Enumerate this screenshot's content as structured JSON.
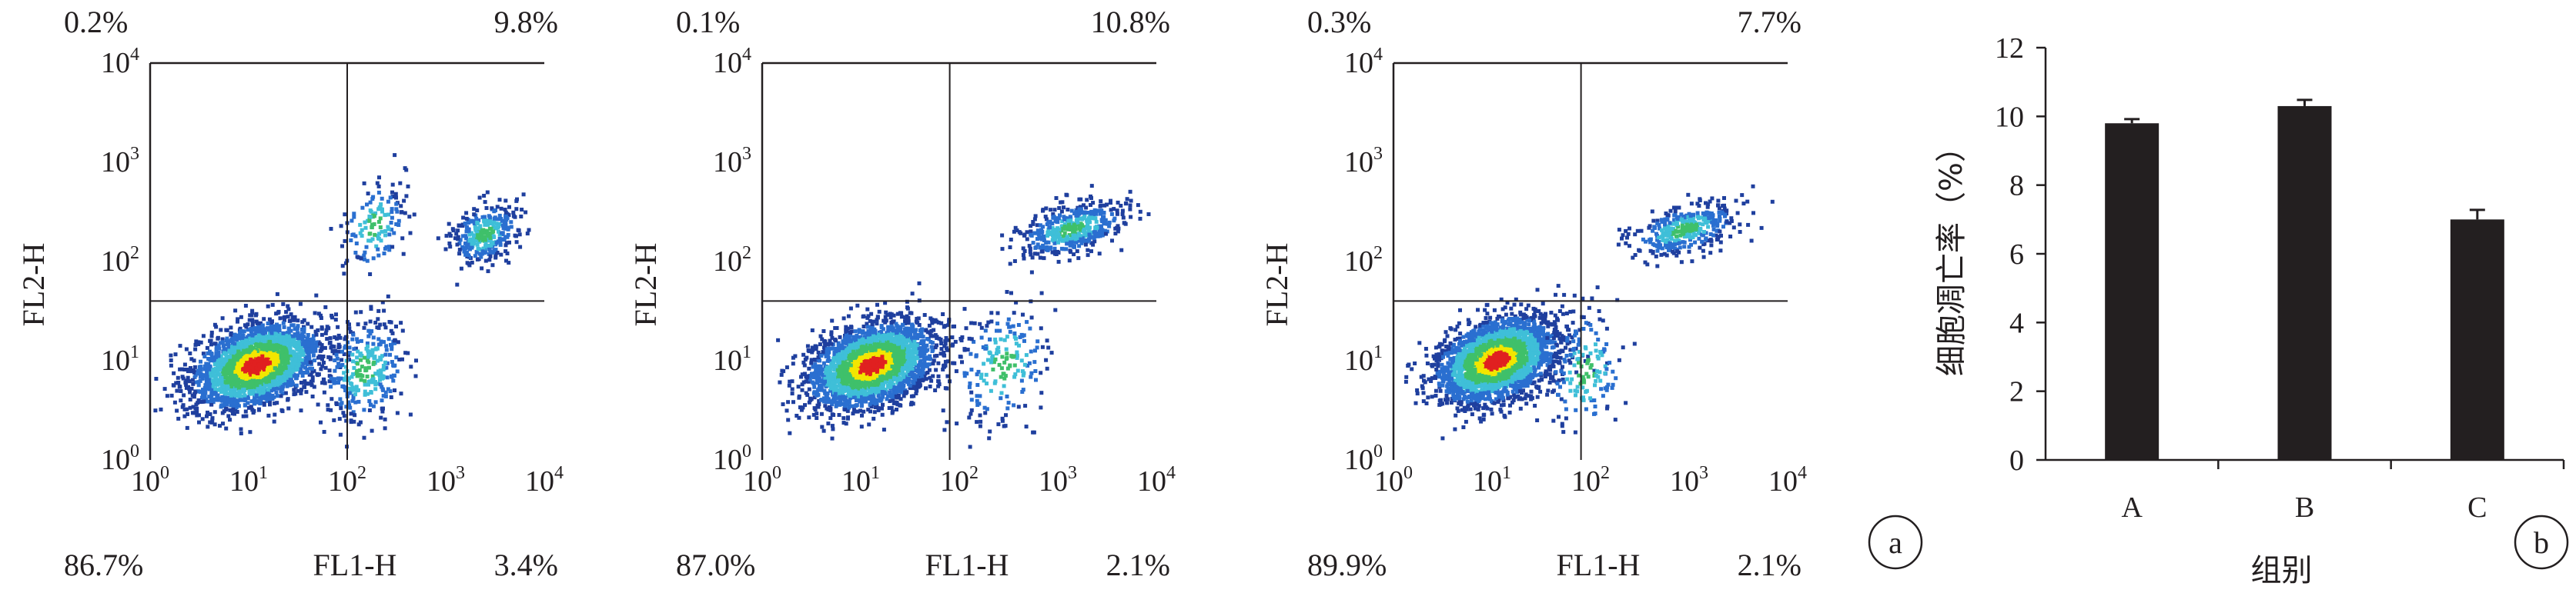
{
  "chart_data": [
    {
      "type": "scatter",
      "subtype": "flow-cytometry-density",
      "xlabel": "FL1-H",
      "ylabel": "FL2-H",
      "axis_scale": "log",
      "xlim": [
        1,
        10000
      ],
      "ylim": [
        1,
        10000
      ],
      "gate": {
        "x": 100,
        "y": 40
      },
      "quadrants": {
        "top_left": "0.2%",
        "top_right": "9.8%",
        "bottom_left": "86.7%",
        "bottom_right": "3.4%"
      },
      "populations": [
        {
          "center": [
            12,
            9
          ],
          "count": 2600,
          "spread": [
            0.32,
            0.2
          ]
        },
        {
          "center": [
            2500,
            190
          ],
          "count": 330,
          "spread": [
            0.17,
            0.15
          ]
        },
        {
          "center": [
            190,
            230
          ],
          "count": 140,
          "spread": [
            0.16,
            0.22
          ]
        },
        {
          "center": [
            150,
            8
          ],
          "count": 320,
          "spread": [
            0.22,
            0.26
          ]
        }
      ]
    },
    {
      "type": "scatter",
      "subtype": "flow-cytometry-density",
      "xlabel": "FL1-H",
      "ylabel": "FL2-H",
      "axis_scale": "log",
      "xlim": [
        1,
        10000
      ],
      "ylim": [
        1,
        10000
      ],
      "gate": {
        "x": 80,
        "y": 40
      },
      "quadrants": {
        "top_left": "0.1%",
        "top_right": "10.8%",
        "bottom_left": "87.0%",
        "bottom_right": "2.1%"
      },
      "populations": [
        {
          "center": [
            13,
            9
          ],
          "count": 2600,
          "spread": [
            0.32,
            0.2
          ]
        },
        {
          "center": [
            1400,
            210
          ],
          "count": 470,
          "spread": [
            0.28,
            0.12
          ]
        },
        {
          "center": [
            280,
            9
          ],
          "count": 200,
          "spread": [
            0.25,
            0.3
          ]
        }
      ]
    },
    {
      "type": "scatter",
      "subtype": "flow-cytometry-density",
      "xlabel": "FL1-H",
      "ylabel": "FL2-H",
      "axis_scale": "log",
      "xlim": [
        1,
        10000
      ],
      "ylim": [
        1,
        10000
      ],
      "gate": {
        "x": 80,
        "y": 40
      },
      "quadrants": {
        "top_left": "0.3%",
        "top_right": "7.7%",
        "bottom_left": "89.9%",
        "bottom_right": "2.1%"
      },
      "populations": [
        {
          "center": [
            11,
            10
          ],
          "count": 2700,
          "spread": [
            0.3,
            0.2
          ]
        },
        {
          "center": [
            900,
            210
          ],
          "count": 380,
          "spread": [
            0.27,
            0.12
          ]
        },
        {
          "center": [
            90,
            8
          ],
          "count": 150,
          "spread": [
            0.2,
            0.3
          ]
        }
      ]
    },
    {
      "type": "bar",
      "categories": [
        "A",
        "B",
        "C"
      ],
      "values": [
        9.8,
        10.3,
        7.0
      ],
      "errors": [
        0.12,
        0.18,
        0.28
      ],
      "xlabel": "组别",
      "ylabel": "细胞凋亡率（%）",
      "ylim": [
        0,
        12
      ],
      "yticks": [
        0,
        2,
        4,
        6,
        8,
        10,
        12
      ],
      "bar_color": "#231f20"
    }
  ],
  "panel_labels": [
    "a",
    "b"
  ],
  "tick_labels": {
    "base": "10",
    "exponents": [
      "0",
      "1",
      "2",
      "3",
      "4"
    ]
  },
  "colors": {
    "axis": "#231f20",
    "density": [
      "#1f3f9e",
      "#2a6fd0",
      "#3fbfd8",
      "#3fc06a",
      "#f2e600",
      "#e02020"
    ]
  }
}
